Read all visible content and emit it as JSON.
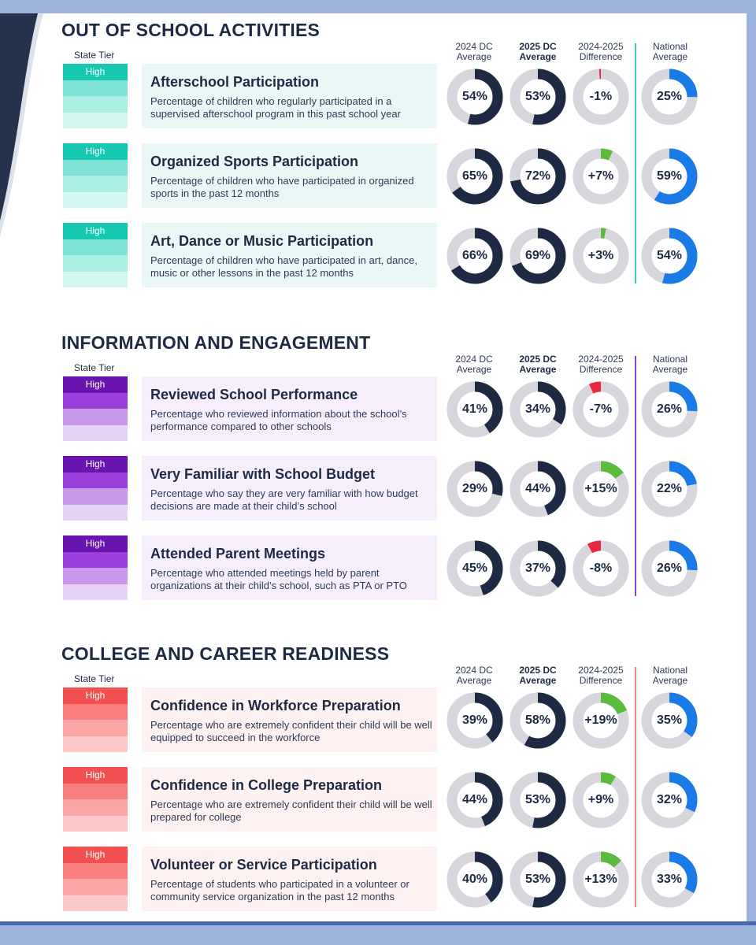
{
  "columns": {
    "c2024": "2024 DC Average",
    "c2025": "2025 DC Average",
    "cdiff": "2024-2025 Difference",
    "cnat": "National Average"
  },
  "colors": {
    "navy": "#1e2a44",
    "ring_grey": "#d6d6dc",
    "national_blue": "#1a7be6",
    "positive_green": "#5cbb3d",
    "negative_red": "#e8283e"
  },
  "sections": [
    {
      "title": "OUT OF SCHOOL ACTIVITIES",
      "state_tier_label": "State Tier",
      "colors": {
        "tier": [
          "#17c8b0",
          "#7ee3d4",
          "#abeee4",
          "#d5f7f1"
        ],
        "card": "#e9f8f6",
        "line": "#3fc9b7"
      },
      "rows": [
        {
          "tier": "High",
          "title": "Afterschool Participation",
          "desc": "Percentage of children who regularly participated in a supervised afterschool program in this past school year",
          "v2024": 54,
          "v2025": 53,
          "diff": -1,
          "nat": 25,
          "l2024": "54%",
          "l2025": "53%",
          "ldiff": "-1%",
          "lnat": "25%"
        },
        {
          "tier": "High",
          "title": "Organized Sports Participation",
          "desc": "Percentage of children who have participated in organized sports in the past 12 months",
          "v2024": 65,
          "v2025": 72,
          "diff": 7,
          "nat": 59,
          "l2024": "65%",
          "l2025": "72%",
          "ldiff": "+7%",
          "lnat": "59%"
        },
        {
          "tier": "High",
          "title": "Art, Dance or Music Participation",
          "desc": "Percentage of children who have participated in art, dance, music or other lessons in the past 12 months",
          "v2024": 66,
          "v2025": 69,
          "diff": 3,
          "nat": 54,
          "l2024": "66%",
          "l2025": "69%",
          "ldiff": "+3%",
          "lnat": "54%"
        }
      ]
    },
    {
      "title": "INFORMATION AND ENGAGEMENT",
      "state_tier_label": "State Tier",
      "colors": {
        "tier": [
          "#6a14b0",
          "#9b3fdc",
          "#c898ea",
          "#e6d3f5"
        ],
        "card": "#f6effb",
        "line": "#8e3fd4"
      },
      "rows": [
        {
          "tier": "High",
          "title": "Reviewed School Performance",
          "desc": "Percentage who reviewed information about the school’s performance compared to other schools",
          "v2024": 41,
          "v2025": 34,
          "diff": -7,
          "nat": 26,
          "l2024": "41%",
          "l2025": "34%",
          "ldiff": "-7%",
          "lnat": "26%"
        },
        {
          "tier": "High",
          "title": "Very Familiar with School Budget",
          "desc": "Percentage who say they are very familiar with how budget decisions are made at their child’s school",
          "v2024": 29,
          "v2025": 44,
          "diff": 15,
          "nat": 22,
          "l2024": "29%",
          "l2025": "44%",
          "ldiff": "+15%",
          "lnat": "22%"
        },
        {
          "tier": "High",
          "title": "Attended Parent Meetings",
          "desc": "Percentage who attended meetings held by parent organizations at their child’s school, such as PTA or PTO",
          "v2024": 45,
          "v2025": 37,
          "diff": -8,
          "nat": 26,
          "l2024": "45%",
          "l2025": "37%",
          "ldiff": "-8%",
          "lnat": "26%"
        }
      ]
    },
    {
      "title": "COLLEGE AND CAREER READINESS",
      "state_tier_label": "State Tier",
      "colors": {
        "tier": [
          "#f25050",
          "#f97f7f",
          "#fba6a6",
          "#fdc8c8"
        ],
        "card": "#fdf1f1",
        "line": "#f08a8a"
      },
      "rows": [
        {
          "tier": "High",
          "title": "Confidence in Workforce Preparation",
          "desc": "Percentage who are extremely confident their child will be well equipped to succeed in the workforce",
          "v2024": 39,
          "v2025": 58,
          "diff": 19,
          "nat": 35,
          "l2024": "39%",
          "l2025": "58%",
          "ldiff": "+19%",
          "lnat": "35%"
        },
        {
          "tier": "High",
          "title": "Confidence in College Preparation",
          "desc": "Percentage who are extremely confident their child will be well prepared for college",
          "v2024": 44,
          "v2025": 53,
          "diff": 9,
          "nat": 32,
          "l2024": "44%",
          "l2025": "53%",
          "ldiff": "+9%",
          "lnat": "32%"
        },
        {
          "tier": "High",
          "title": "Volunteer or Service Participation",
          "desc": "Percentage of students who participated in a volunteer or community service organization in the past 12 months",
          "v2024": 40,
          "v2025": 53,
          "diff": 13,
          "nat": 33,
          "l2024": "40%",
          "l2025": "53%",
          "ldiff": "+13%",
          "lnat": "33%"
        }
      ]
    }
  ]
}
